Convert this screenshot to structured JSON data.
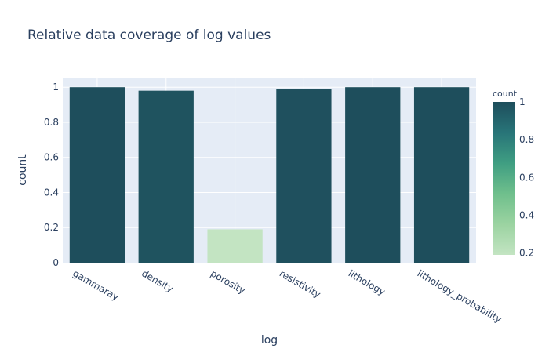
{
  "chart_data": {
    "type": "bar",
    "title": "Relative data coverage of log values",
    "xlabel": "log",
    "ylabel": "count",
    "categories": [
      "gammaray",
      "density",
      "porosity",
      "resistivity",
      "lithology",
      "lithology_probability"
    ],
    "values": [
      1.0,
      0.98,
      0.19,
      0.99,
      1.0,
      1.0
    ],
    "ylim": [
      0,
      1.05
    ],
    "yticks": [
      0,
      0.2,
      0.4,
      0.6,
      0.8,
      1
    ],
    "ytick_labels": [
      "0",
      "0.2",
      "0.4",
      "0.6",
      "0.8",
      "1"
    ],
    "grid": true,
    "colorbar": {
      "title": "count",
      "range": [
        0.19,
        1.0
      ],
      "ticks": [
        0.2,
        0.4,
        0.6,
        0.8,
        1
      ],
      "tick_labels": [
        "0.2",
        "0.4",
        "0.6",
        "0.8",
        "1"
      ],
      "colors": [
        "#c3e4c2",
        "#9bd3a1",
        "#6fbf8c",
        "#3f9e82",
        "#287478",
        "#1e4e5c"
      ],
      "placement": "right"
    },
    "colors": {
      "plot_background": "#e5ecf6",
      "gridline": "#ffffff",
      "text": "#2a3f5f"
    }
  }
}
